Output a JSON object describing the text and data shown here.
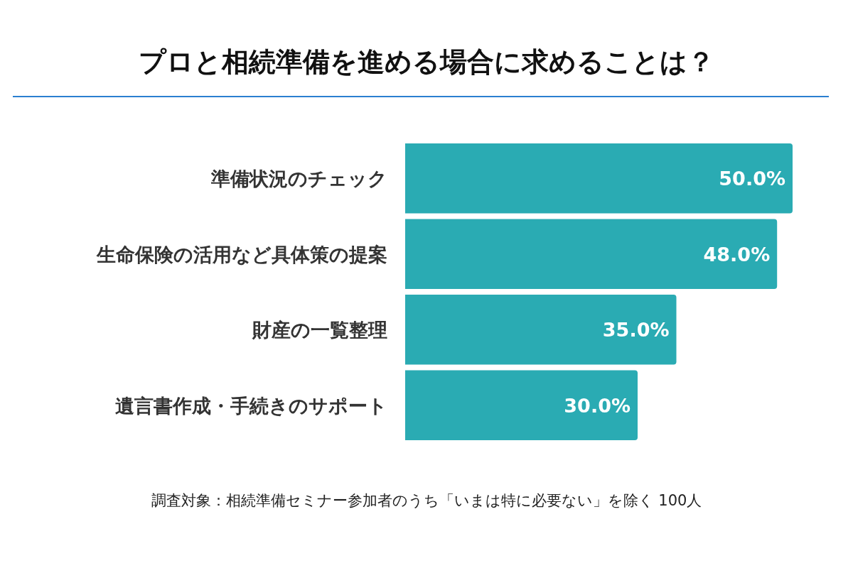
{
  "chart_data": {
    "type": "bar",
    "orientation": "horizontal",
    "title": "プロと相続準備を進める場合に求めることは？",
    "categories": [
      "準備状況のチェック",
      "生命保険の活用など具体策の提案",
      "財産の一覧整理",
      "遺言書作成・手続きのサポート"
    ],
    "values": [
      50.0,
      48.0,
      35.0,
      30.0
    ],
    "value_labels": [
      "50.0%",
      "48.0%",
      "35.0%",
      "30.0%"
    ],
    "color": "#2aabb3",
    "annotations": [
      "調査対象：相続準備セミナー参加者のうち「いまは特に必要ない」を除く 100人"
    ]
  }
}
